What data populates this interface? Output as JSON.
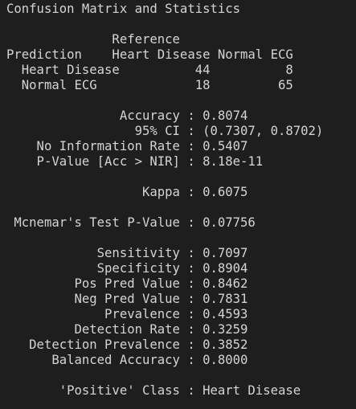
{
  "console": {
    "lines": [
      "Confusion Matrix and Statistics",
      "",
      "              Reference",
      "Prediction    Heart Disease Normal ECG",
      "  Heart Disease          44          8",
      "  Normal ECG             18         65",
      "",
      "               Accuracy : 0.8074",
      "                 95% CI : (0.7307, 0.8702)",
      "    No Information Rate : 0.5407",
      "    P-Value [Acc > NIR] : 8.18e-11",
      "",
      "                  Kappa : 0.6075",
      "",
      " Mcnemar's Test P-Value : 0.07756",
      "",
      "            Sensitivity : 0.7097",
      "            Specificity : 0.8904",
      "         Pos Pred Value : 0.8462",
      "         Neg Pred Value : 0.7831",
      "             Prevalence : 0.4593",
      "         Detection Rate : 0.3259",
      "   Detection Prevalence : 0.3852",
      "      Balanced Accuracy : 0.8000",
      "",
      "       'Positive' Class : Heart Disease"
    ]
  }
}
